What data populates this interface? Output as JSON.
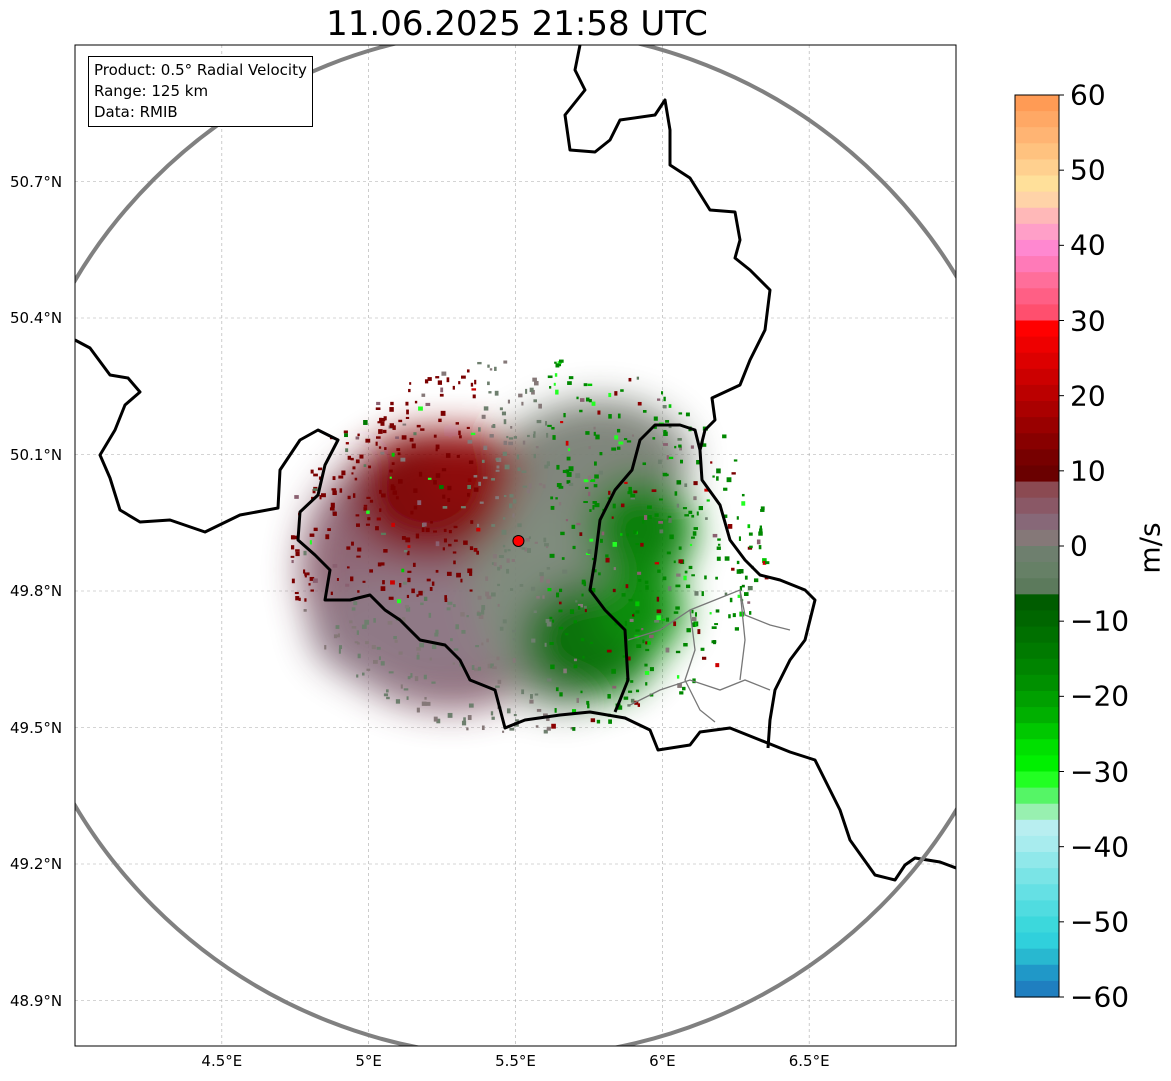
{
  "title": "11.06.2025 21:58 UTC",
  "info_box": [
    "Product: 0.5° Radial Velocity",
    "Range: 125 km",
    "Data: RMIB"
  ],
  "axes": {
    "lat_ticks": [
      {
        "value": 50.7,
        "label": "50.7°N"
      },
      {
        "value": 50.4,
        "label": "50.4°N"
      },
      {
        "value": 50.1,
        "label": "50.1°N"
      },
      {
        "value": 49.8,
        "label": "49.8°N"
      },
      {
        "value": 49.5,
        "label": "49.5°N"
      },
      {
        "value": 49.2,
        "label": "49.2°N"
      },
      {
        "value": 48.9,
        "label": "48.9°N"
      }
    ],
    "lon_ticks": [
      {
        "value": 4.5,
        "label": "4.5°E"
      },
      {
        "value": 5,
        "label": "5°E"
      },
      {
        "value": 5.5,
        "label": "5.5°E"
      },
      {
        "value": 6,
        "label": "6°E"
      },
      {
        "value": 6.5,
        "label": "6.5°E"
      }
    ],
    "lon_range": [
      4.0,
      7.0
    ],
    "lat_range": [
      48.8,
      51.0
    ]
  },
  "radar_site": {
    "lon": 5.51,
    "lat": 49.91
  },
  "colorbar": {
    "label": "m/s",
    "min": -60,
    "max": 60,
    "ticks": [
      "60",
      "50",
      "40",
      "30",
      "20",
      "10",
      "0",
      "−10",
      "−20",
      "−30",
      "−40",
      "−50",
      "−60"
    ],
    "colors": [
      "#ff9b55",
      "#ffa865",
      "#ffb473",
      "#ffc27f",
      "#ffd08f",
      "#ffe09a",
      "#ffd3a8",
      "#ffb8b8",
      "#ff9fc8",
      "#ff88d0",
      "#ff7ab8",
      "#ff6e9a",
      "#ff5f85",
      "#ff4f6e",
      "#ff0000",
      "#ee0000",
      "#dd0000",
      "#cc0000",
      "#bb0000",
      "#aa0000",
      "#990000",
      "#880000",
      "#770000",
      "#6a0000",
      "#8b4a52",
      "#8a5866",
      "#876878",
      "#857878",
      "#6e7f6e",
      "#668066",
      "#5c7a5c",
      "#005c00",
      "#006600",
      "#007000",
      "#007a00",
      "#008400",
      "#009000",
      "#00a000",
      "#00b000",
      "#00c800",
      "#00e000",
      "#00f000",
      "#22ff22",
      "#55f566",
      "#98f0b0",
      "#b8eef0",
      "#a8ecee",
      "#90e8ea",
      "#7ae4e6",
      "#65e0e4",
      "#50dce0",
      "#3cd8dc",
      "#30d0dc",
      "#28b8d0",
      "#2098c8",
      "#1f7fc0"
    ]
  }
}
